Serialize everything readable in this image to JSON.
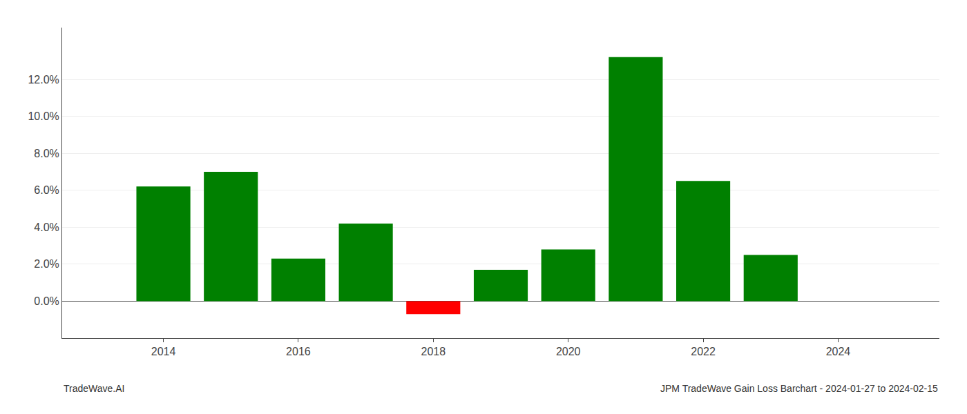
{
  "chart_data": {
    "type": "bar",
    "x": [
      2014,
      2015,
      2016,
      2017,
      2018,
      2019,
      2020,
      2021,
      2022,
      2023
    ],
    "values": [
      0.062,
      0.07,
      0.023,
      0.042,
      -0.007,
      0.017,
      0.028,
      0.132,
      0.065,
      0.025
    ],
    "colors": [
      "#008000",
      "#008000",
      "#008000",
      "#008000",
      "#ff0000",
      "#008000",
      "#008000",
      "#008000",
      "#008000",
      "#008000"
    ],
    "xlim": [
      2012.5,
      2025.5
    ],
    "xticks": [
      2014,
      2016,
      2018,
      2020,
      2022,
      2024
    ],
    "ylim": [
      -0.02,
      0.148
    ],
    "yticks": [
      {
        "value": 0.0,
        "label": "0.0%"
      },
      {
        "value": 0.02,
        "label": "2.0%"
      },
      {
        "value": 0.04,
        "label": "4.0%"
      },
      {
        "value": 0.06,
        "label": "6.0%"
      },
      {
        "value": 0.08,
        "label": "8.0%"
      },
      {
        "value": 0.1,
        "label": "10.0%"
      },
      {
        "value": 0.12,
        "label": "12.0%"
      }
    ],
    "grid": true,
    "annotations": [
      "TradeWave.AI",
      "JPM TradeWave Gain Loss Barchart - 2024-01-27 to 2024-02-15"
    ]
  }
}
